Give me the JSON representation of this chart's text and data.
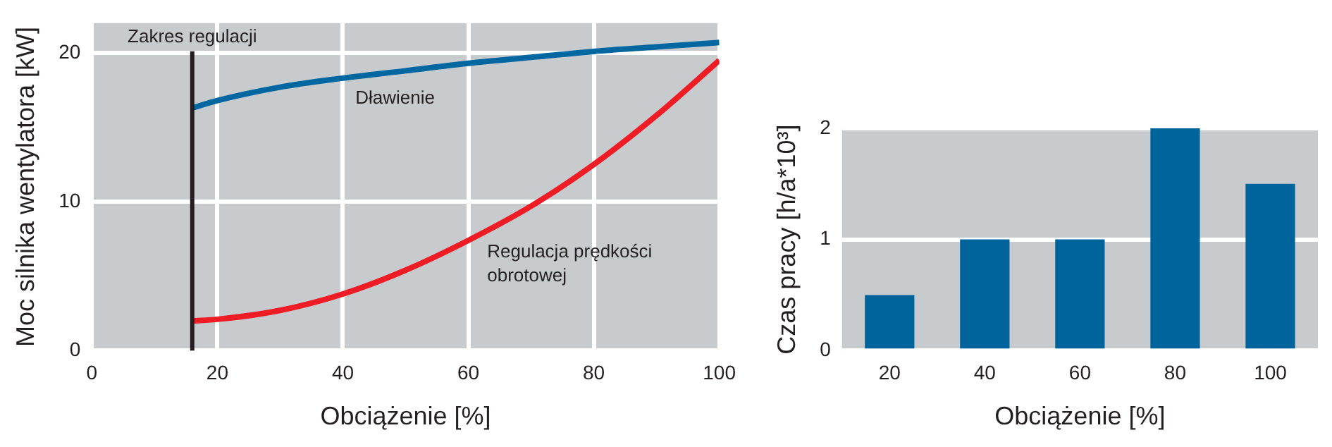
{
  "chart_data": [
    {
      "type": "line",
      "xlabel": "Obciążenie [%]",
      "ylabel": "Moc silnika wentylatora [kW]",
      "xlim": [
        0,
        100
      ],
      "xticks": [
        0,
        20,
        40,
        60,
        80,
        100
      ],
      "ylim": [
        0,
        22
      ],
      "yticks": [
        0,
        10,
        20
      ],
      "grid": true,
      "marker": "none",
      "line_style": "solid",
      "series": [
        {
          "name": "Dławienie",
          "color": "#0067a0",
          "x": [
            16,
            20,
            30,
            40,
            50,
            60,
            70,
            80,
            90,
            100
          ],
          "values": [
            16.3,
            16.8,
            17.7,
            18.3,
            18.8,
            19.3,
            19.7,
            20.1,
            20.4,
            20.7
          ]
        },
        {
          "name": "Regulacja prędkości obrotowej",
          "color": "#ee1c25",
          "x": [
            16,
            20,
            30,
            40,
            50,
            60,
            70,
            80,
            90,
            100
          ],
          "values": [
            2.0,
            2.1,
            2.7,
            3.8,
            5.4,
            7.4,
            9.7,
            12.5,
            15.8,
            19.5
          ]
        }
      ],
      "ref_lines": [
        {
          "axis": "x",
          "value": 16,
          "label": "Zakres regulacji",
          "color": "#231f20"
        }
      ]
    },
    {
      "type": "bar",
      "xlabel": "Obciążenie [%]",
      "ylabel": "Czas pracy [h/a*10³]",
      "categories": [
        "20",
        "40",
        "60",
        "80",
        "100"
      ],
      "values": [
        0.5,
        1,
        1,
        2,
        1.5
      ],
      "color": "#00649c",
      "ylim": [
        0,
        2
      ],
      "yticks": [
        0,
        1,
        2
      ],
      "grid": "y"
    }
  ]
}
